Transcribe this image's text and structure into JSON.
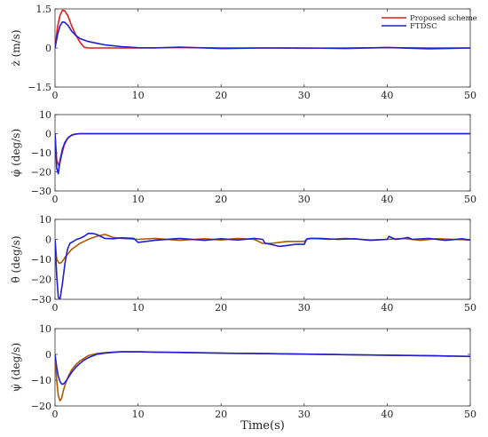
{
  "chart_data": [
    {
      "type": "line",
      "ylabel": "ż (m/s)",
      "xlim": [
        0,
        50
      ],
      "ylim": [
        -1.5,
        1.5
      ],
      "xticks": [
        0,
        10,
        20,
        30,
        40,
        50
      ],
      "yticks": [
        1.5,
        0,
        -1.5
      ],
      "legend": {
        "placement": "top-right"
      },
      "series": [
        {
          "name": "Proposed scheme",
          "color": "#e41a1c",
          "x": [
            0,
            0.3,
            0.6,
            0.9,
            1.2,
            1.6,
            2.0,
            2.5,
            3.0,
            3.5,
            4.0,
            6,
            10,
            15,
            20,
            25,
            30,
            35,
            40,
            45,
            50
          ],
          "y": [
            0,
            0.8,
            1.25,
            1.45,
            1.42,
            1.2,
            0.85,
            0.5,
            0.22,
            0.03,
            0.0,
            0.0,
            0.0,
            0.02,
            0.0,
            0.0,
            -0.01,
            0.0,
            0.01,
            0.0,
            0.0
          ]
        },
        {
          "name": "FTDSC",
          "color": "#1f1fd6",
          "x": [
            0,
            0.3,
            0.6,
            0.9,
            1.2,
            1.6,
            2.0,
            2.5,
            3.0,
            4.0,
            5.0,
            6,
            8,
            10,
            12,
            15,
            18,
            20,
            25,
            30,
            35,
            40,
            45,
            50
          ],
          "y": [
            0,
            0.5,
            0.85,
            1.0,
            0.98,
            0.85,
            0.65,
            0.48,
            0.36,
            0.25,
            0.18,
            0.12,
            0.05,
            0.01,
            0.0,
            0.03,
            0.0,
            -0.02,
            0.0,
            0.0,
            -0.02,
            0.02,
            -0.03,
            0.0
          ]
        }
      ]
    },
    {
      "type": "line",
      "ylabel": "φ̇ (deg/s)",
      "xlim": [
        0,
        50
      ],
      "ylim": [
        -30,
        10
      ],
      "xticks": [
        0,
        10,
        20,
        30,
        40,
        50
      ],
      "yticks": [
        10,
        0,
        -10,
        -20,
        -30
      ],
      "series": [
        {
          "color": "#e41a1c",
          "x": [
            0,
            0.2,
            0.5,
            0.8,
            1.1,
            1.5,
            2.0,
            2.5,
            3.0,
            4.0,
            10,
            20,
            30,
            40,
            50
          ],
          "y": [
            0,
            -14,
            -17,
            -11,
            -6,
            -2.5,
            -0.8,
            -0.2,
            0,
            0,
            0,
            0,
            0,
            0,
            0
          ]
        },
        {
          "color": "#1f1fd6",
          "x": [
            0,
            0.2,
            0.4,
            0.6,
            0.9,
            1.2,
            1.6,
            2.0,
            2.5,
            3.0,
            4.0,
            10,
            20,
            30,
            40,
            50
          ],
          "y": [
            0,
            -18,
            -21,
            -14,
            -8,
            -4.5,
            -2.0,
            -0.8,
            -0.2,
            0,
            0,
            0,
            0,
            0,
            0,
            0
          ]
        }
      ]
    },
    {
      "type": "line",
      "ylabel": "θ̇ (deg/s)",
      "xlim": [
        0,
        50
      ],
      "ylim": [
        -30,
        10
      ],
      "xticks": [
        0,
        10,
        20,
        30,
        40,
        50
      ],
      "yticks": [
        10,
        0,
        -10,
        -20,
        -30
      ],
      "series": [
        {
          "color": "#b05a00",
          "x": [
            0,
            0.2,
            0.5,
            0.8,
            1.2,
            1.6,
            2.0,
            2.5,
            3.0,
            3.5,
            4.0,
            5.0,
            6.0,
            7,
            8,
            10,
            12,
            15,
            18,
            20,
            22,
            24,
            25,
            26,
            27,
            28,
            29,
            30,
            30.5,
            31,
            33,
            35,
            38,
            40,
            42,
            44,
            46,
            48,
            50
          ],
          "y": [
            0,
            -10,
            -12,
            -11.5,
            -9,
            -7,
            -5,
            -3.5,
            -2,
            -1,
            0,
            1.5,
            2.5,
            1.0,
            0.5,
            0,
            0.5,
            -0.5,
            0.3,
            -0.3,
            0.5,
            0,
            -2,
            -2,
            -1.5,
            -1.0,
            -1.0,
            -1.0,
            0.5,
            0.5,
            0,
            0.5,
            -0.3,
            0,
            0.5,
            -0.5,
            0.3,
            0,
            -0.3
          ]
        },
        {
          "color": "#1f1fd6",
          "x": [
            0,
            0.2,
            0.4,
            0.6,
            0.9,
            1.2,
            1.5,
            1.8,
            2.2,
            2.6,
            3.0,
            3.5,
            4.0,
            4.5,
            5.0,
            5.5,
            6.0,
            7,
            8,
            9.5,
            10,
            12,
            15,
            18,
            20,
            22,
            24,
            25,
            25.3,
            26,
            27,
            28,
            29,
            30,
            30.3,
            31,
            32,
            34,
            36,
            38,
            40,
            40.2,
            41,
            42,
            42.5,
            43,
            45,
            47,
            49,
            50
          ],
          "y": [
            0,
            -18,
            -29,
            -30,
            -22,
            -12,
            -5,
            -2,
            -1,
            0,
            0.5,
            1.5,
            3.0,
            3.0,
            2.5,
            1.5,
            0.5,
            0.3,
            0.8,
            0.5,
            -1.5,
            -0.5,
            0.5,
            -0.5,
            0.3,
            -0.3,
            0.5,
            0,
            -2,
            -2.5,
            -3.5,
            -3,
            -2.5,
            -2.5,
            0.2,
            0.5,
            0.5,
            0,
            0.3,
            -0.5,
            0,
            1.5,
            0,
            0.5,
            1.0,
            0,
            0.5,
            -0.5,
            0.3,
            -0.3
          ]
        }
      ]
    },
    {
      "type": "line",
      "ylabel": "ψ̇ (deg/s)",
      "xlim": [
        0,
        50
      ],
      "ylim": [
        -20,
        10
      ],
      "xticks": [
        0,
        10,
        20,
        30,
        40,
        50
      ],
      "yticks": [
        10,
        0,
        -10,
        -20
      ],
      "xlabel": "Time(s)",
      "series": [
        {
          "color": "#b05a00",
          "x": [
            0,
            0.2,
            0.4,
            0.6,
            0.8,
            1.0,
            1.3,
            1.6,
            2.0,
            2.5,
            3.0,
            3.5,
            4.0,
            5.0,
            6.0,
            7.0,
            8.0,
            10,
            12,
            15,
            20,
            25,
            30,
            35,
            40,
            45,
            50
          ],
          "y": [
            0,
            -10,
            -16,
            -18,
            -17,
            -14,
            -11,
            -8.5,
            -6,
            -4,
            -2.5,
            -1.5,
            -0.5,
            0.3,
            0.7,
            0.9,
            1.0,
            1.0,
            0.9,
            0.7,
            0.5,
            0.3,
            0.1,
            -0.1,
            -0.3,
            -0.5,
            -0.8
          ]
        },
        {
          "color": "#1f1fd6",
          "x": [
            0,
            0.2,
            0.4,
            0.6,
            0.8,
            1.0,
            1.3,
            1.6,
            2.0,
            2.5,
            3.0,
            3.5,
            4.0,
            5.0,
            6.0,
            7.0,
            8.0,
            10,
            12,
            15,
            20,
            25,
            30,
            35,
            40,
            45,
            50
          ],
          "y": [
            0,
            -5,
            -8.5,
            -10.5,
            -11.5,
            -11.5,
            -10.5,
            -9,
            -7,
            -5,
            -3.5,
            -2.2,
            -1.3,
            0,
            0.5,
            0.8,
            1.0,
            1.0,
            0.9,
            0.8,
            0.5,
            0.3,
            0.1,
            -0.1,
            -0.3,
            -0.5,
            -0.8
          ]
        }
      ]
    }
  ]
}
